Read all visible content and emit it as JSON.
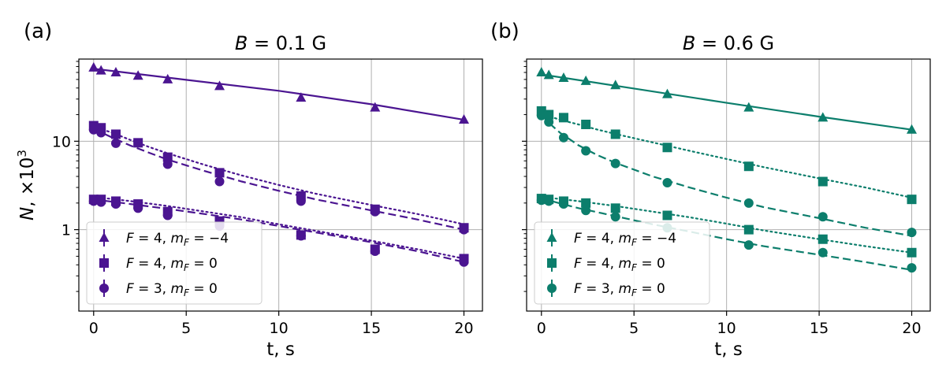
{
  "chart_data": [
    {
      "type": "scatter",
      "panel_label": "(a)",
      "title": "B = 0.1 G",
      "title_math": {
        "var": "B",
        "rest": " = 0.1 G"
      },
      "xlabel": "t, s",
      "ylabel": "N, ×10³",
      "ylabel_parts": {
        "var": "N",
        "rest": ", ×10",
        "sup": "3"
      },
      "xlim": [
        -0.8,
        21
      ],
      "ylim": [
        0.12,
        85
      ],
      "yscale": "log",
      "xticks": [
        0,
        5,
        10,
        15,
        20
      ],
      "xtick_labels": [
        "0",
        "5",
        "10",
        "15",
        "20"
      ],
      "yticks": [
        1,
        10
      ],
      "ytick_labels": [
        "1",
        "10"
      ],
      "grid": true,
      "legend_position": "lower-left",
      "color": "#4b1591",
      "series": [
        {
          "name": "F = 4, m_F = −4",
          "label": {
            "a": "F",
            "b": " = 4, ",
            "c": "m",
            "sub": "F",
            "d": " = −4"
          },
          "marker": "triangle",
          "x": [
            0,
            0.4,
            1.2,
            2.4,
            4,
            6.8,
            11.2,
            15.2,
            20
          ],
          "y": [
            68,
            63,
            60,
            55,
            50,
            42,
            31,
            24,
            17.5
          ],
          "fits": [
            {
              "style": "solid",
              "x": [
                0,
                5,
                10,
                15,
                20
              ],
              "y": [
                66,
                49.5,
                37.2,
                26.2,
                17.5
              ]
            }
          ]
        },
        {
          "name": "F = 4, m_F = 0",
          "label": {
            "a": "F",
            "b": " = 4, ",
            "c": "m",
            "sub": "F",
            "d": " = 0"
          },
          "marker": "square",
          "x": [
            0,
            0.4,
            1.2,
            2.4,
            4,
            6.8,
            11.2,
            15.2,
            20,
            0,
            0.4,
            1.2,
            2.4,
            4,
            6.8,
            11.2,
            15.2,
            20
          ],
          "y": [
            15,
            14.2,
            12,
            9.6,
            6.6,
            4.4,
            2.4,
            1.7,
            1.05,
            2.2,
            2.2,
            2.1,
            1.95,
            1.6,
            1.25,
            0.87,
            0.6,
            0.47
          ],
          "fits": [
            {
              "style": "dotted",
              "x": [
                0,
                1,
                2,
                3,
                4,
                6,
                8,
                10,
                12,
                15,
                17.5,
                20
              ],
              "y": [
                14.6,
                12.5,
                10.3,
                8.6,
                7.3,
                5.4,
                4.1,
                3.2,
                2.55,
                1.9,
                1.5,
                1.15
              ]
            },
            {
              "style": "dotted",
              "x": [
                0,
                2,
                4,
                6,
                8,
                10,
                12,
                15,
                17.5,
                20
              ],
              "y": [
                2.35,
                2.1,
                1.85,
                1.6,
                1.38,
                1.15,
                0.97,
                0.75,
                0.6,
                0.47
              ]
            }
          ]
        },
        {
          "name": "F = 3, m_F = 0",
          "label": {
            "a": "F",
            "b": " = 3, ",
            "c": "m",
            "sub": "F",
            "d": " = 0"
          },
          "marker": "circle",
          "x": [
            0,
            0.4,
            1.2,
            4,
            6.8,
            11.2,
            15.2,
            20,
            0,
            0.4,
            1.2,
            2.4,
            4,
            6.8,
            11.2,
            15.2,
            20
          ],
          "y": [
            13.5,
            12.5,
            9.5,
            5.5,
            3.5,
            2.1,
            1.6,
            1.0,
            2.1,
            2.05,
            1.95,
            1.75,
            1.45,
            1.1,
            0.85,
            0.57,
            0.43
          ],
          "fits": [
            {
              "style": "dashed",
              "x": [
                0,
                1,
                2,
                3,
                4,
                6,
                8,
                10,
                12,
                15,
                17.5,
                20
              ],
              "y": [
                13.8,
                11,
                8.9,
                7.4,
                6.2,
                4.6,
                3.5,
                2.75,
                2.2,
                1.65,
                1.3,
                1.0
              ]
            },
            {
              "style": "dashed",
              "x": [
                0,
                2,
                4,
                6,
                8,
                10,
                12,
                15,
                17.5,
                20
              ],
              "y": [
                2.2,
                1.95,
                1.72,
                1.5,
                1.3,
                1.1,
                0.93,
                0.72,
                0.57,
                0.43
              ]
            }
          ]
        }
      ]
    },
    {
      "type": "scatter",
      "panel_label": "(b)",
      "title": "B = 0.6 G",
      "title_math": {
        "var": "B",
        "rest": " = 0.6 G"
      },
      "xlabel": "t, s",
      "ylabel": "",
      "xlim": [
        -0.8,
        21
      ],
      "ylim": [
        0.12,
        85
      ],
      "yscale": "log",
      "xticks": [
        0,
        5,
        10,
        15,
        20
      ],
      "xtick_labels": [
        "0",
        "5",
        "10",
        "15",
        "20"
      ],
      "yticks": [
        1,
        10
      ],
      "ytick_labels": [
        "",
        ""
      ],
      "grid": true,
      "legend_position": "lower-left",
      "color": "#0c7e6c",
      "series": [
        {
          "name": "F = 4, m_F = −4",
          "label": {
            "a": "F",
            "b": " = 4, ",
            "c": "m",
            "sub": "F",
            "d": " = −4"
          },
          "marker": "triangle",
          "x": [
            0,
            0.4,
            1.2,
            2.4,
            4,
            6.8,
            11.2,
            15.2,
            20
          ],
          "y": [
            60,
            56,
            52,
            48,
            43,
            34,
            24,
            18.5,
            13.5
          ],
          "fits": [
            {
              "style": "solid",
              "x": [
                0,
                5,
                10,
                15,
                20
              ],
              "y": [
                57,
                39.5,
                27.2,
                19,
                13.5
              ]
            }
          ]
        },
        {
          "name": "F = 4, m_F = 0",
          "label": {
            "a": "F",
            "b": " = 4, ",
            "c": "m",
            "sub": "F",
            "d": " = 0"
          },
          "marker": "square",
          "x": [
            0,
            0.4,
            1.2,
            2.4,
            4,
            6.8,
            11.2,
            15.2,
            20,
            0,
            0.4,
            1.2,
            2.4,
            4,
            6.8,
            11.2,
            15.2,
            20
          ],
          "y": [
            22,
            20,
            18.5,
            15.5,
            12,
            8.5,
            5.2,
            3.5,
            2.2,
            2.25,
            2.2,
            2.1,
            2.0,
            1.75,
            1.45,
            1.0,
            0.78,
            0.55
          ],
          "fits": [
            {
              "style": "dotted",
              "x": [
                0,
                1,
                2,
                3,
                4,
                6,
                8,
                10,
                12,
                15,
                17.5,
                20
              ],
              "y": [
                20.5,
                17.5,
                15.5,
                13.6,
                12.1,
                9.7,
                7.8,
                6.3,
                5.1,
                3.8,
                3.0,
                2.3
              ]
            },
            {
              "style": "dotted",
              "x": [
                0,
                2,
                4,
                6,
                8,
                10,
                12,
                15,
                17.5,
                20
              ],
              "y": [
                2.35,
                2.1,
                1.85,
                1.6,
                1.38,
                1.17,
                0.98,
                0.78,
                0.65,
                0.55
              ]
            }
          ]
        },
        {
          "name": "F = 3, m_F = 0",
          "label": {
            "a": "F",
            "b": " = 3, ",
            "c": "m",
            "sub": "F",
            "d": " = 0"
          },
          "marker": "circle",
          "x": [
            0,
            0.4,
            1.2,
            2.4,
            4,
            6.8,
            11.2,
            15.2,
            20,
            0,
            0.4,
            1.2,
            2.4,
            4,
            6.8,
            11.2,
            15.2,
            20
          ],
          "y": [
            19.5,
            16.5,
            11,
            7.8,
            5.6,
            3.4,
            2.0,
            1.4,
            0.93,
            2.15,
            2.1,
            1.95,
            1.65,
            1.4,
            1.05,
            0.67,
            0.55,
            0.37
          ],
          "fits": [
            {
              "style": "dashed",
              "x": [
                0,
                0.5,
                1,
                2,
                3,
                4,
                6,
                8,
                10,
                12,
                15,
                17.5,
                20
              ],
              "y": [
                20,
                15.5,
                12.5,
                9.0,
                7.0,
                5.7,
                4.0,
                3.0,
                2.3,
                1.8,
                1.35,
                1.05,
                0.85
              ]
            },
            {
              "style": "dashed",
              "x": [
                0,
                2,
                4,
                6,
                8,
                10,
                12,
                15,
                17.5,
                20
              ],
              "y": [
                2.25,
                1.75,
                1.42,
                1.15,
                0.95,
                0.78,
                0.65,
                0.52,
                0.43,
                0.35
              ]
            }
          ]
        }
      ]
    }
  ]
}
